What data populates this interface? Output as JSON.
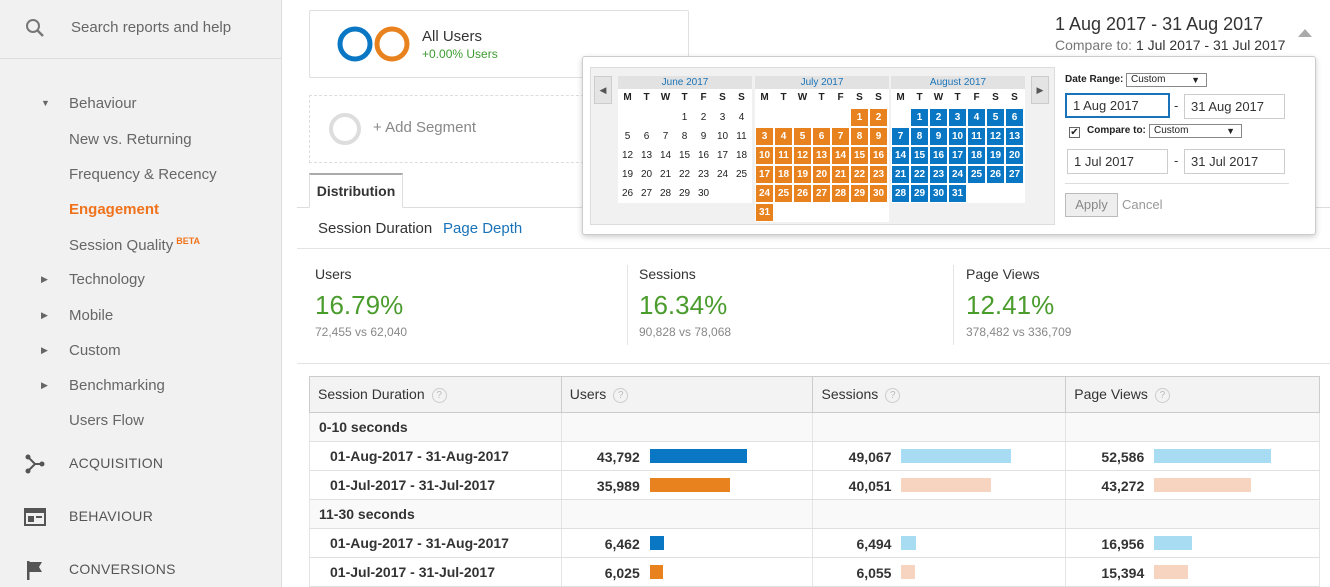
{
  "sidebar": {
    "search_placeholder": "Search reports and help",
    "items": [
      {
        "label": "Behaviour"
      },
      {
        "label": "New vs. Returning"
      },
      {
        "label": "Frequency & Recency"
      },
      {
        "label": "Engagement"
      },
      {
        "label": "Session Quality",
        "badge": "BETA"
      },
      {
        "label": "Technology"
      },
      {
        "label": "Mobile"
      },
      {
        "label": "Custom"
      },
      {
        "label": "Benchmarking"
      },
      {
        "label": "Users Flow"
      }
    ],
    "sections": [
      {
        "label": "ACQUISITION",
        "icon": "acquisition-icon"
      },
      {
        "label": "BEHAVIOUR",
        "icon": "behaviour-icon"
      },
      {
        "label": "CONVERSIONS",
        "icon": "flag-icon"
      }
    ]
  },
  "segment": {
    "title": "All Users",
    "sub": "+0.00% Users",
    "add_label": "+ Add Segment"
  },
  "header": {
    "date_range": "1 Aug 2017 - 31 Aug 2017",
    "compare_prefix": "Compare to: ",
    "compare_range": "1 Jul 2017 - 31 Jul 2017"
  },
  "tabs": {
    "main": "Distribution",
    "sub1": "Session Duration",
    "sub2": "Page Depth"
  },
  "metrics": [
    {
      "label": "Users",
      "value": "16.79%",
      "compare": "72,455 vs 62,040"
    },
    {
      "label": "Sessions",
      "value": "16.34%",
      "compare": "90,828 vs 78,068"
    },
    {
      "label": "Page Views",
      "value": "12.41%",
      "compare": "378,482 vs 336,709"
    }
  ],
  "table": {
    "headers": [
      "Session Duration",
      "Users",
      "Sessions",
      "Page Views"
    ],
    "groups": [
      {
        "label": "0-10 seconds",
        "rows": [
          {
            "date": "01-Aug-2017 - 31-Aug-2017",
            "users": "43,792",
            "sessions": "49,067",
            "pageviews": "52,586",
            "u": 43792,
            "s": 49067,
            "p": 52586,
            "kind": "current"
          },
          {
            "date": "01-Jul-2017 - 31-Jul-2017",
            "users": "35,989",
            "sessions": "40,051",
            "pageviews": "43,272",
            "u": 35989,
            "s": 40051,
            "p": 43272,
            "kind": "previous"
          }
        ]
      },
      {
        "label": "11-30 seconds",
        "rows": [
          {
            "date": "01-Aug-2017 - 31-Aug-2017",
            "users": "6,462",
            "sessions": "6,494",
            "pageviews": "16,956",
            "u": 6462,
            "s": 6494,
            "p": 16956,
            "kind": "current"
          },
          {
            "date": "01-Jul-2017 - 31-Jul-2017",
            "users": "6,025",
            "sessions": "6,055",
            "pageviews": "15,394",
            "u": 6025,
            "s": 6055,
            "p": 15394,
            "kind": "previous"
          }
        ]
      }
    ]
  },
  "colors": {
    "blue": "#0a77c5",
    "orange": "#e8821e",
    "light_blue": "#a8dcf2",
    "light_orange": "#f7d4bf"
  },
  "calendar": {
    "prev": "◀",
    "next": "▶",
    "dows": [
      "M",
      "T",
      "W",
      "T",
      "F",
      "S",
      "S"
    ],
    "months": [
      {
        "name": "June 2017",
        "offset": 3,
        "days": 30,
        "hl": "none"
      },
      {
        "name": "July 2017",
        "offset": 5,
        "days": 31,
        "hl": "orange"
      },
      {
        "name": "August 2017",
        "offset": 1,
        "days": 31,
        "hl": "blue"
      }
    ],
    "date_range_label": "Date Range:",
    "date_range_select": "Custom",
    "start": "1 Aug 2017",
    "end": "31 Aug 2017",
    "compare_label": "Compare to:",
    "compare_select": "Custom",
    "compare_check": "✔",
    "cmp_start": "1 Jul 2017",
    "cmp_end": "31 Jul 2017",
    "dash": "-",
    "apply": "Apply",
    "cancel": "Cancel"
  }
}
